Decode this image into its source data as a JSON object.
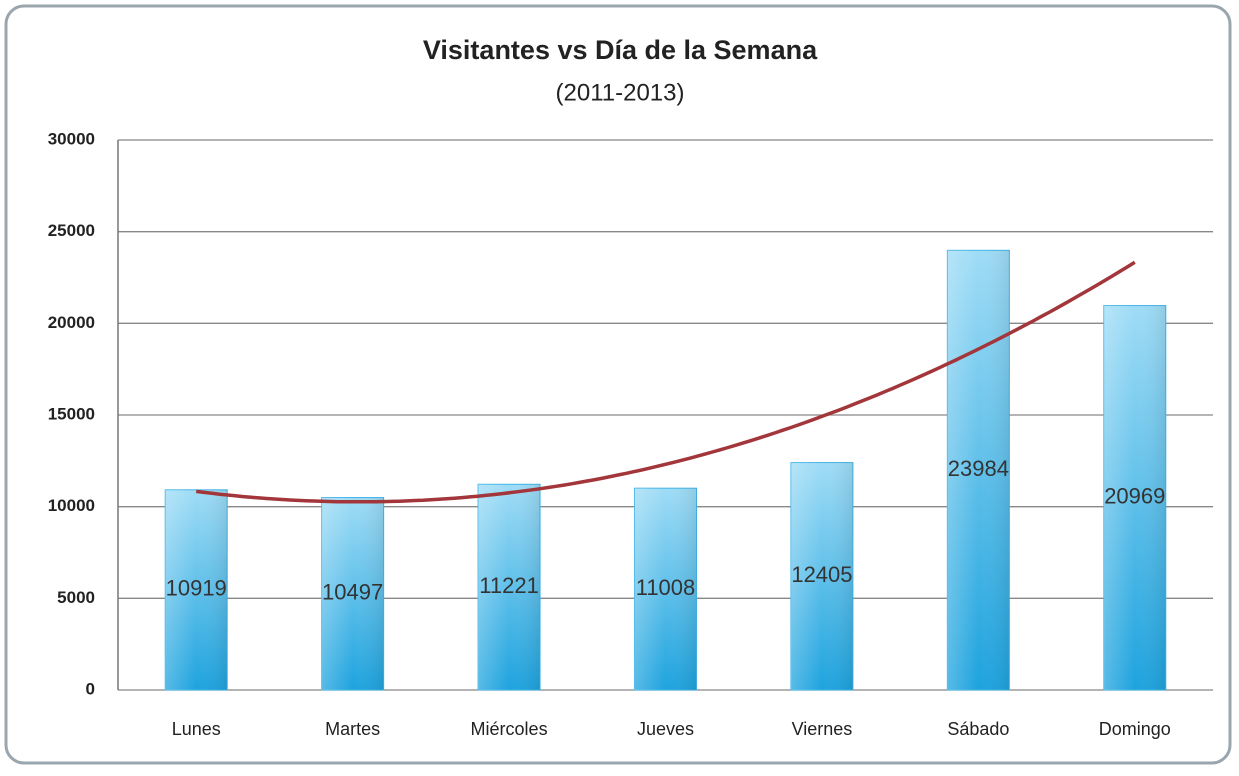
{
  "chart_data": {
    "type": "bar",
    "title": "Visitantes vs Día de la Semana",
    "subtitle": "(2011-2013)",
    "categories": [
      "Lunes",
      "Martes",
      "Miércoles",
      "Jueves",
      "Viernes",
      "Sábado",
      "Domingo"
    ],
    "values": [
      10919,
      10497,
      11221,
      11008,
      12405,
      23984,
      20969
    ],
    "color": "#3fb4e6",
    "ylim": [
      0,
      30000
    ],
    "yticks": [
      0,
      5000,
      10000,
      15000,
      20000,
      25000,
      30000
    ],
    "grid": true,
    "data_labels": true,
    "trendline": {
      "type": "polynomial",
      "order": 2,
      "color": "#a3363a"
    }
  }
}
